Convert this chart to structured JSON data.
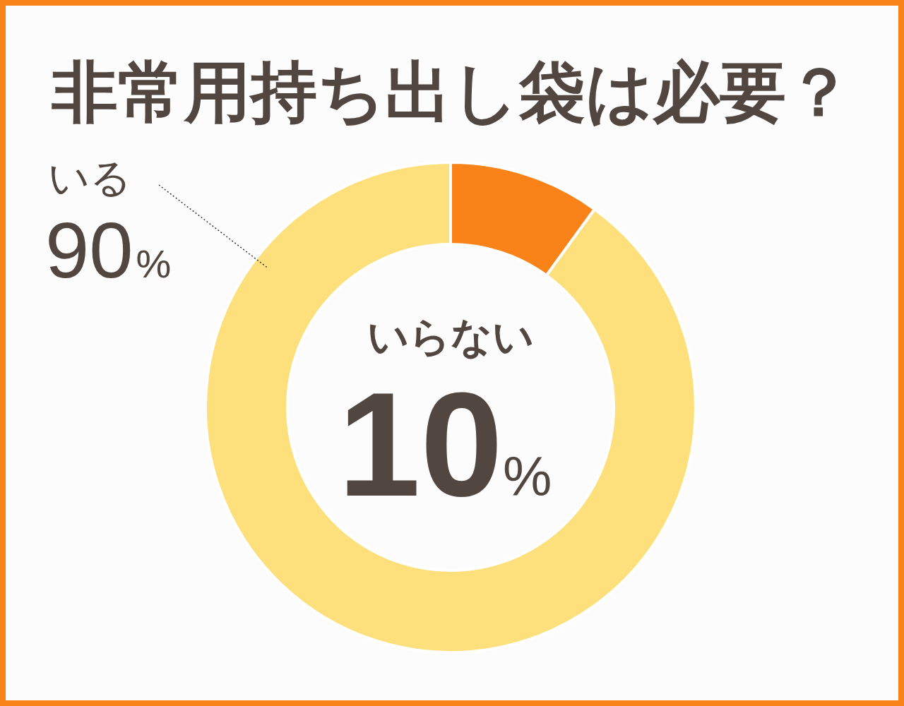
{
  "chart_data": {
    "type": "donut",
    "title": "非常用持ち出し袋は必要？",
    "categories": [
      "いらない",
      "いる"
    ],
    "values": [
      10,
      90
    ],
    "colors": [
      "#f98318",
      "#fde07c"
    ],
    "value_labels": [
      "10%",
      "90%"
    ]
  }
}
